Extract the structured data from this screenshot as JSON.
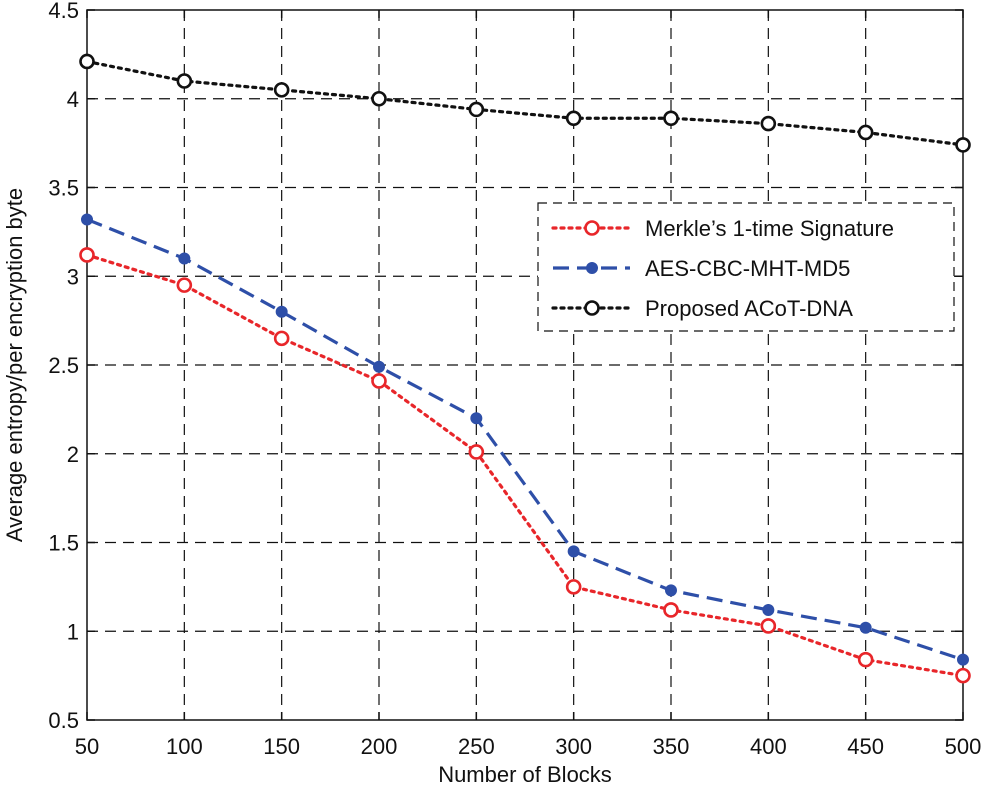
{
  "chart_data": {
    "type": "line",
    "title": "",
    "xlabel": "Number of Blocks",
    "ylabel": "Average entropy/per encryption byte",
    "x": [
      50,
      100,
      150,
      200,
      250,
      300,
      350,
      400,
      450,
      500
    ],
    "xlim": [
      50,
      500
    ],
    "ylim": [
      0.5,
      4.5
    ],
    "xticks": [
      50,
      100,
      150,
      200,
      250,
      300,
      350,
      400,
      450,
      500
    ],
    "yticks": [
      0.5,
      1,
      1.5,
      2,
      2.5,
      3,
      3.5,
      4,
      4.5
    ],
    "grid": true,
    "legend_position": "center-right",
    "series": [
      {
        "name": "Merkle’s 1-time Signature",
        "color": "#e8262a",
        "line_style": "dotted",
        "marker": "open-circle",
        "values": [
          3.12,
          2.95,
          2.65,
          2.41,
          2.01,
          1.25,
          1.12,
          1.03,
          0.84,
          0.75
        ]
      },
      {
        "name": "AES-CBC-MHT-MD5",
        "color": "#2e4fa8",
        "line_style": "dashed",
        "marker": "filled-circle",
        "values": [
          3.32,
          3.1,
          2.8,
          2.49,
          2.2,
          1.45,
          1.23,
          1.12,
          1.02,
          0.84
        ]
      },
      {
        "name": "Proposed ACoT-DNA",
        "color": "#111111",
        "line_style": "dotted",
        "marker": "open-circle",
        "values": [
          4.21,
          4.1,
          4.05,
          4.0,
          3.94,
          3.89,
          3.89,
          3.86,
          3.81,
          3.74
        ]
      }
    ]
  }
}
